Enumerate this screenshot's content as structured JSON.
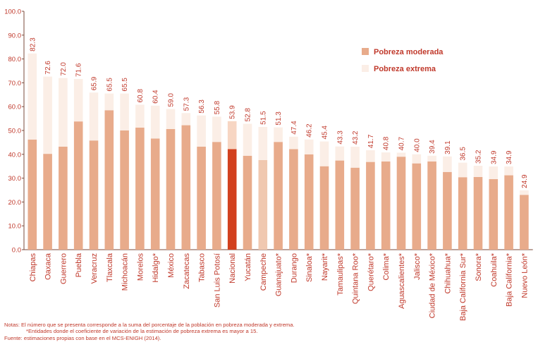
{
  "colors": {
    "moderate": "#e8ab8b",
    "extreme": "#fbeee6",
    "national_moderate": "#d2401e",
    "national_extreme": "#f7d6c3",
    "campeche_moderate": "#f0c8b0",
    "text": "#c0392b",
    "axis": "#7a4a3a"
  },
  "chart_data": {
    "type": "bar",
    "stacked": true,
    "categories": [
      "Chiapas",
      "Oaxaca",
      "Guerrero",
      "Puebla",
      "Veracruz",
      "Tlaxcala",
      "Michoacán",
      "Morelos",
      "Hidalgo*",
      "México",
      "Zacatecas",
      "Tabasco",
      "San Luis Potosí",
      "Nacional",
      "Yucatán",
      "Campeche",
      "Guanajuato*",
      "Durango",
      "Sinaloa*",
      "Nayarit*",
      "Tamaulipas*",
      "Quintana Roo*",
      "Querétaro*",
      "Colima*",
      "Aguascalientes*",
      "Jalisco*",
      "Ciudad de México*",
      "Chihuahua*",
      "Baja California Sur*",
      "Sonora*",
      "Coahuila*",
      "Baja California*",
      "Nuevo León*"
    ],
    "series": [
      {
        "name": "Pobreza moderada",
        "values": [
          46.2,
          40.2,
          43.2,
          53.8,
          45.8,
          58.5,
          50.0,
          51.2,
          46.6,
          50.6,
          52.2,
          43.2,
          45.2,
          42.2,
          39.4,
          37.6,
          45.2,
          42.2,
          40.0,
          35.0,
          37.4,
          34.4,
          36.8,
          37.0,
          39.0,
          36.2,
          37.0,
          32.6,
          30.4,
          30.5,
          29.6,
          31.2,
          23.0
        ]
      },
      {
        "name": "Pobreza extrema",
        "values": [
          36.1,
          32.4,
          28.8,
          17.8,
          20.1,
          7.0,
          15.5,
          9.6,
          13.8,
          8.4,
          5.1,
          13.1,
          10.6,
          11.7,
          13.4,
          13.9,
          6.1,
          5.2,
          6.2,
          10.4,
          5.9,
          8.8,
          4.9,
          3.8,
          1.7,
          3.8,
          2.4,
          6.5,
          6.1,
          4.7,
          5.3,
          3.7,
          1.9
        ]
      }
    ],
    "totals": [
      "82.3",
      "72.6",
      "72.0",
      "71.6",
      "65.9",
      "65.5",
      "65.5",
      "60.8",
      "60.4",
      "59.0",
      "57.3",
      "56.3",
      "55.8",
      "53.9",
      "52.8",
      "51.5",
      "51.3",
      "47.4",
      "46.2",
      "45.4",
      "43.3",
      "43.2",
      "41.7",
      "40.8",
      "40.7",
      "40.0",
      "39.4",
      "39.1",
      "36.5",
      "35.2",
      "34.9",
      "34.9",
      "24.9"
    ],
    "highlight": "Nacional",
    "highlight_light": "Campeche",
    "y_ticks": [
      "0.0",
      "10.0",
      "20.0",
      "30.0",
      "40.0",
      "50.0",
      "60.0",
      "70.0",
      "80.0",
      "90.0",
      "100.0"
    ],
    "ylim": [
      0,
      100
    ],
    "grid": false,
    "legend_position": "top-right"
  },
  "notes": {
    "line1": "Notas:  El número que se presenta corresponde a la suma del porcentaje de la población en pobreza moderada y extrema.",
    "line2": "*Entidades donde el coeficiente de variación de la estimación de pobreza extrema es mayor a 15.",
    "line3": "Fuente: estimaciones propias con base en el MCS-ENIGH (2014)."
  }
}
